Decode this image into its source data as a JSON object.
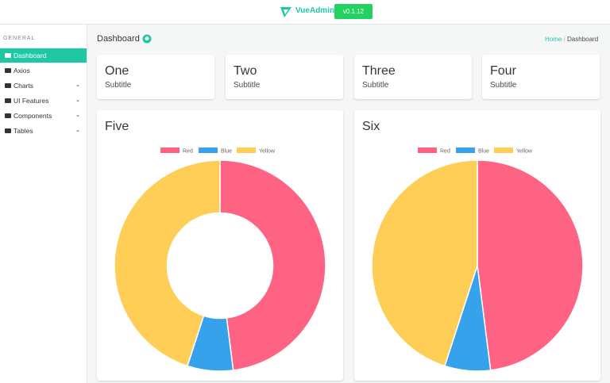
{
  "header": {
    "brand": "VueAdmin",
    "version": "v0.1.12"
  },
  "sidebar": {
    "section": "GENERAL",
    "items": [
      "Dashboard",
      "Axios",
      "Charts",
      "UI Features",
      "Components",
      "Tables"
    ]
  },
  "page": {
    "title": "Dashboard",
    "breadcrumb": [
      "Home",
      "Dashboard"
    ]
  },
  "cards": [
    {
      "title": "One",
      "subtitle": "Subtitle"
    },
    {
      "title": "Two",
      "subtitle": "Subtitle"
    },
    {
      "title": "Three",
      "subtitle": "Subtitle"
    },
    {
      "title": "Four",
      "subtitle": "Subtitle"
    }
  ],
  "chart_data": [
    {
      "type": "doughnut",
      "title": "Five",
      "categories": [
        "Red",
        "Blue",
        "Yellow"
      ],
      "values": [
        48,
        7,
        45
      ],
      "colors": [
        "#ff6384",
        "#36a2eb",
        "#ffce56"
      ]
    },
    {
      "type": "pie",
      "title": "Six",
      "categories": [
        "Red",
        "Blue",
        "Yellow"
      ],
      "values": [
        48,
        7,
        45
      ],
      "colors": [
        "#ff6384",
        "#36a2eb",
        "#ffce56"
      ]
    }
  ]
}
